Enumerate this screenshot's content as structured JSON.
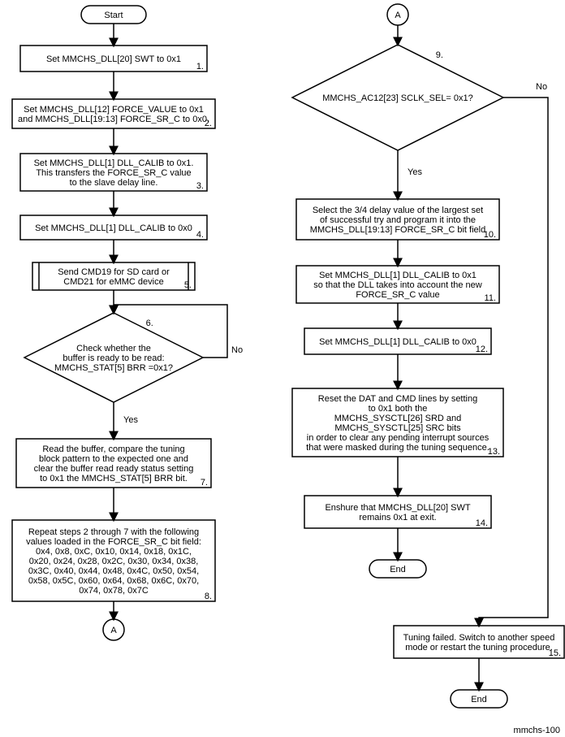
{
  "diagram": {
    "footer_label": "mmchs-100",
    "terminals": {
      "start": "Start",
      "end1": "End",
      "end2": "End",
      "connA_top": "A",
      "connA_bot": "A"
    },
    "labels": {
      "yes": "Yes",
      "no": "No"
    },
    "boxes": {
      "b1": {
        "num": "1.",
        "lines": [
          "Set MMCHS_DLL[20] SWT to 0x1"
        ]
      },
      "b2": {
        "num": "2.",
        "lines": [
          "Set MMCHS_DLL[12] FORCE_VALUE to 0x1",
          "and MMCHS_DLL[19:13] FORCE_SR_C to 0x0."
        ]
      },
      "b3": {
        "num": "3.",
        "lines": [
          "Set MMCHS_DLL[1] DLL_CALIB to 0x1.",
          "This transfers the FORCE_SR_C value",
          "to the slave delay line."
        ]
      },
      "b4": {
        "num": "4.",
        "lines": [
          "Set MMCHS_DLL[1] DLL_CALIB to 0x0"
        ]
      },
      "b5": {
        "num": "5.",
        "lines": [
          "Send CMD19 for SD card or",
          "CMD21 for eMMC device"
        ]
      },
      "b7": {
        "num": "7.",
        "lines": [
          "Read the buffer, compare the tuning",
          "block pattern to the expected one and",
          "clear the buffer read ready status setting",
          "to 0x1 the MMCHS_STAT[5] BRR bit."
        ]
      },
      "b8": {
        "num": "8.",
        "lines": [
          "Repeat steps 2 through 7 with the following",
          "values loaded in the FORCE_SR_C bit field:",
          "0x4, 0x8, 0xC, 0x10, 0x14, 0x18, 0x1C,",
          "0x20, 0x24, 0x28, 0x2C, 0x30, 0x34, 0x38,",
          "0x3C, 0x40, 0x44, 0x48, 0x4C, 0x50, 0x54,",
          "0x58, 0x5C, 0x60, 0x64, 0x68, 0x6C, 0x70,",
          "0x74, 0x78, 0x7C"
        ]
      },
      "b10": {
        "num": "10.",
        "lines": [
          "Select the 3/4 delay value of the largest set",
          "of successful try and program it into the",
          "MMCHS_DLL[19:13] FORCE_SR_C bit field"
        ]
      },
      "b11": {
        "num": "11.",
        "lines": [
          "Set MMCHS_DLL[1] DLL_CALIB to 0x1",
          "so that the DLL takes into account the new",
          "FORCE_SR_C value"
        ]
      },
      "b12": {
        "num": "12.",
        "lines": [
          "Set MMCHS_DLL[1] DLL_CALIB to 0x0"
        ]
      },
      "b13": {
        "num": "13.",
        "lines": [
          "Reset the DAT and CMD lines by setting",
          "to 0x1 both the",
          "MMCHS_SYSCTL[26] SRD and",
          "MMCHS_SYSCTL[25] SRC bits",
          "in order to clear any pending interrupt sources",
          "that were masked during the tuning sequence."
        ]
      },
      "b14": {
        "num": "14.",
        "lines": [
          "Enshure that MMCHS_DLL[20] SWT",
          "remains 0x1 at exit."
        ]
      },
      "b15": {
        "num": "15.",
        "lines": [
          "Tuning failed. Switch to another speed",
          "mode or restart the tuning procedure."
        ]
      }
    },
    "decisions": {
      "d6": {
        "num": "6.",
        "lines": [
          "Check whether the",
          "buffer is ready to be read:",
          "MMCHS_STAT[5] BRR =0x1?"
        ]
      },
      "d9": {
        "num": "9.",
        "lines": [
          "MMCHS_AC12[23] SCLK_SEL= 0x1?"
        ]
      }
    },
    "style": {
      "stroke": "#000000",
      "stroke_width": 1.5,
      "terminal_fill": "#ffffff",
      "box_fill": "#ffffff",
      "font": "Arial"
    }
  }
}
